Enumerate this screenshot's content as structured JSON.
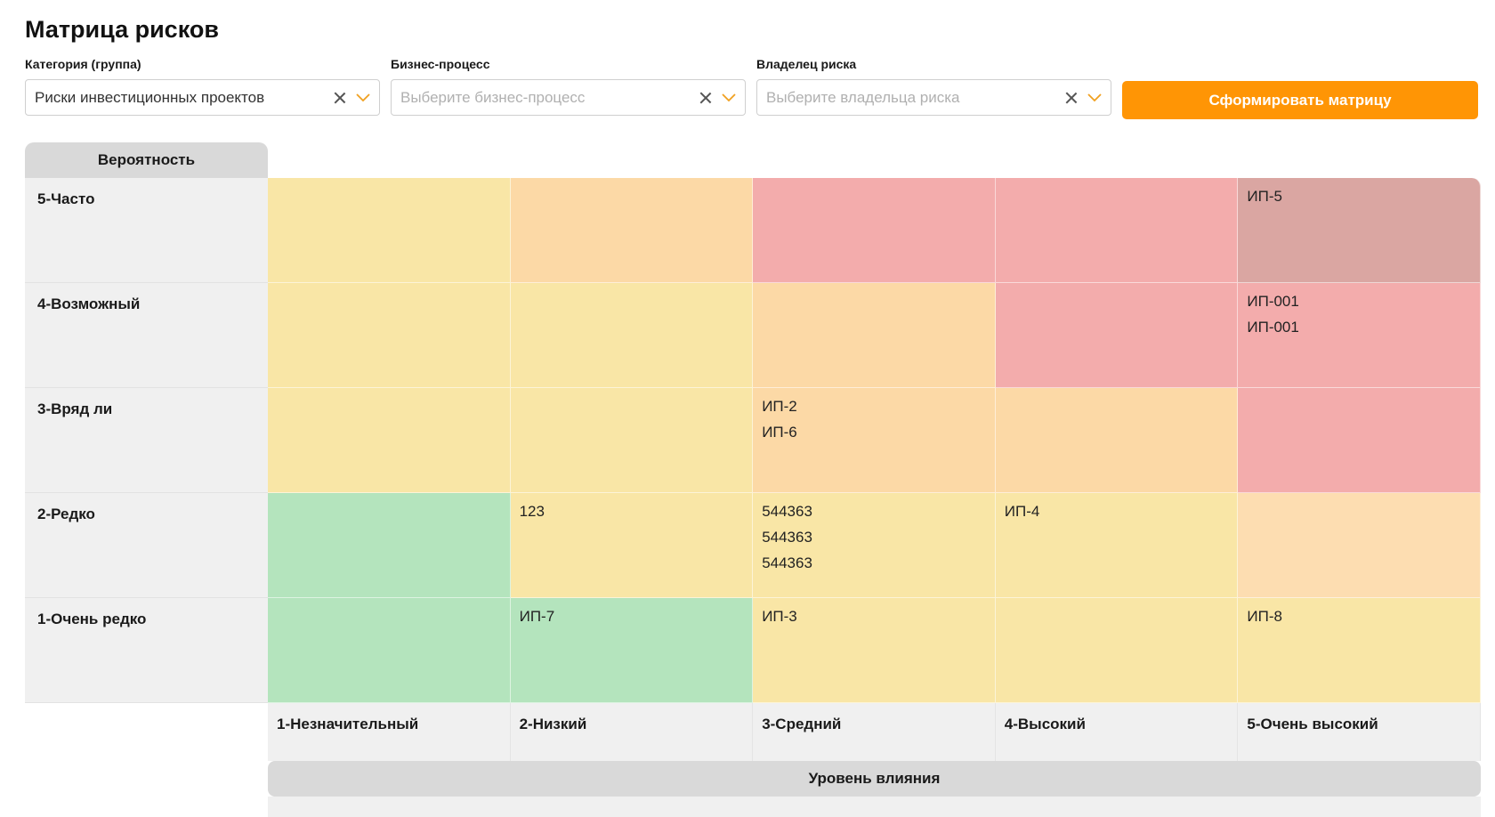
{
  "page": {
    "title": "Матрица рисков"
  },
  "filters": {
    "category": {
      "label": "Категория (группа)",
      "value": "Риски инвестиционных проектов"
    },
    "process": {
      "label": "Бизнес-процесс",
      "placeholder": "Выберите бизнес-процесс"
    },
    "owner": {
      "label": "Владелец риска",
      "placeholder": "Выберите владельца риска"
    },
    "submit_label": "Сформировать матрицу"
  },
  "matrix": {
    "probability_title": "Вероятность",
    "impact_title": "Уровень влияния",
    "rows": [
      {
        "label": "5-Часто"
      },
      {
        "label": "4-Возможный"
      },
      {
        "label": "3-Вряд ли"
      },
      {
        "label": "2-Редко"
      },
      {
        "label": "1-Очень редко"
      }
    ],
    "columns": [
      {
        "label": "1-Незначительный"
      },
      {
        "label": "2-Низкий"
      },
      {
        "label": "3-Средний"
      },
      {
        "label": "4-Высокий"
      },
      {
        "label": "5-Очень высокий"
      }
    ],
    "cell_colors": {
      "green": "#b4e4bd",
      "yellow": "#f9e6a6",
      "orange": "#fcd9a6",
      "red": "#f3acac",
      "dark_red": "#daa6a2",
      "accent": "#ff9505"
    },
    "cells": {
      "r5c5": [
        "ИП-5"
      ],
      "r4c5": [
        "ИП-001",
        "ИП-001"
      ],
      "r3c3": [
        "ИП-2",
        "ИП-6"
      ],
      "r2c2": [
        "123"
      ],
      "r2c3": [
        "544363",
        "544363",
        "544363"
      ],
      "r2c4": [
        "ИП-4"
      ],
      "r1c2": [
        "ИП-7"
      ],
      "r1c3": [
        "ИП-3"
      ],
      "r1c5": [
        "ИП-8"
      ]
    }
  }
}
